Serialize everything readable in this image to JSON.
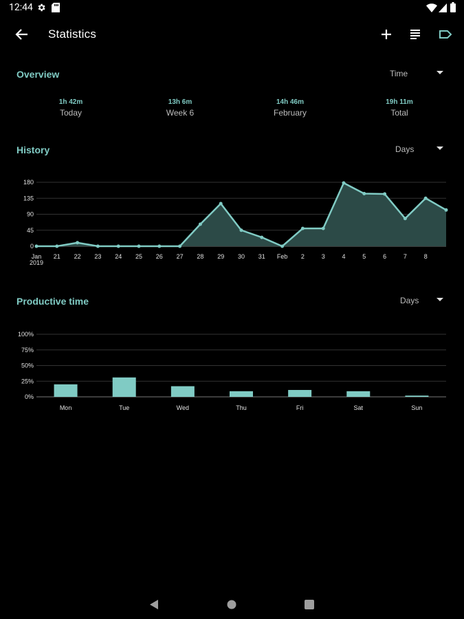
{
  "status": {
    "time": "12:44"
  },
  "toolbar": {
    "title": "Statistics"
  },
  "overview": {
    "title": "Overview",
    "dropdown": "Time",
    "items": [
      {
        "value": "1h 42m",
        "label": "Today"
      },
      {
        "value": "13h 6m",
        "label": "Week 6"
      },
      {
        "value": "14h 46m",
        "label": "February"
      },
      {
        "value": "19h 11m",
        "label": "Total"
      }
    ]
  },
  "history": {
    "title": "History",
    "dropdown": "Days"
  },
  "productive": {
    "title": "Productive time",
    "dropdown": "Days"
  },
  "chart_data": [
    {
      "type": "area",
      "x_ticks": [
        "Jan\n2019",
        "21",
        "22",
        "23",
        "24",
        "25",
        "26",
        "27",
        "28",
        "29",
        "30",
        "31",
        "Feb",
        "2",
        "3",
        "4",
        "5",
        "6",
        "7",
        "8",
        ""
      ],
      "values": [
        0,
        0,
        10,
        0,
        0,
        0,
        0,
        0,
        62,
        120,
        45,
        25,
        0,
        50,
        50,
        178,
        148,
        147,
        78,
        135,
        102
      ],
      "y_ticks": [
        "0",
        "45",
        "90",
        "135",
        "180"
      ],
      "ylim": [
        0,
        180
      ],
      "grid": true,
      "color": "#80cbc4"
    },
    {
      "type": "bar",
      "categories": [
        "Mon",
        "Tue",
        "Wed",
        "Thu",
        "Fri",
        "Sat",
        "Sun"
      ],
      "values": [
        20,
        31,
        17,
        9,
        11,
        9,
        2
      ],
      "y_ticks": [
        "0%",
        "25%",
        "50%",
        "75%",
        "100%"
      ],
      "ylim": [
        0,
        100
      ],
      "grid": true,
      "color": "#80cbc4"
    }
  ]
}
